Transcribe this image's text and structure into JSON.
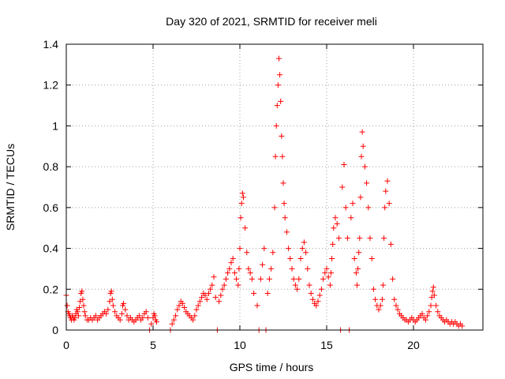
{
  "chart_data": {
    "type": "scatter",
    "title": "Day 320 of 2021, SRMTID for receiver meli",
    "xlabel": "GPS time / hours",
    "ylabel": "SRMTID / TECUs",
    "xlim": [
      0,
      24
    ],
    "ylim": [
      0,
      1.4
    ],
    "grid": true,
    "marker": "plus",
    "color": "#ff0000",
    "xticks": [
      0,
      5,
      10,
      15,
      20
    ],
    "xtick_labels": [
      "0",
      "5",
      "10",
      "15",
      "20"
    ],
    "yticks": [
      0,
      0.2,
      0.4,
      0.6,
      0.8,
      1.0,
      1.2,
      1.4
    ],
    "ytick_labels": [
      "0",
      "0.2",
      "0.4",
      "0.6",
      "0.8",
      "1",
      "1.2",
      "1.4"
    ],
    "series": [
      {
        "name": "meli",
        "x": [
          0.0,
          0.05,
          0.1,
          0.15,
          0.2,
          0.25,
          0.3,
          0.35,
          0.4,
          0.45,
          0.5,
          0.55,
          0.6,
          0.65,
          0.7,
          0.75,
          0.8,
          0.85,
          0.9,
          0.95,
          1.0,
          1.05,
          1.1,
          1.2,
          1.3,
          1.4,
          1.5,
          1.6,
          1.7,
          1.8,
          1.9,
          2.0,
          2.1,
          2.2,
          2.3,
          2.4,
          2.5,
          2.55,
          2.6,
          2.65,
          2.7,
          2.8,
          2.9,
          3.0,
          3.1,
          3.2,
          3.25,
          3.3,
          3.4,
          3.5,
          3.6,
          3.7,
          3.8,
          3.9,
          4.0,
          4.1,
          4.2,
          4.3,
          4.4,
          4.5,
          4.6,
          4.7,
          4.8,
          4.9,
          5.0,
          5.05,
          5.1,
          5.15,
          5.2,
          6.0,
          6.1,
          6.2,
          6.3,
          6.4,
          6.5,
          6.6,
          6.7,
          6.8,
          6.9,
          7.0,
          7.1,
          7.2,
          7.3,
          7.4,
          7.5,
          7.6,
          7.7,
          7.8,
          7.9,
          8.0,
          8.1,
          8.2,
          8.3,
          8.4,
          8.5,
          8.6,
          8.7,
          8.8,
          8.9,
          9.0,
          9.1,
          9.2,
          9.3,
          9.4,
          9.5,
          9.6,
          9.7,
          9.8,
          9.9,
          9.95,
          10.0,
          10.05,
          10.1,
          10.15,
          10.2,
          10.3,
          10.4,
          10.5,
          10.6,
          10.7,
          10.8,
          11.0,
          11.1,
          11.2,
          11.3,
          11.4,
          11.5,
          11.6,
          11.7,
          11.8,
          11.9,
          12.0,
          12.05,
          12.1,
          12.15,
          12.2,
          12.25,
          12.3,
          12.35,
          12.4,
          12.45,
          12.5,
          12.55,
          12.6,
          12.7,
          12.8,
          12.9,
          13.0,
          13.1,
          13.2,
          13.3,
          13.4,
          13.5,
          13.6,
          13.7,
          13.8,
          13.9,
          14.0,
          14.1,
          14.2,
          14.3,
          14.4,
          14.5,
          14.6,
          14.7,
          14.8,
          14.9,
          15.0,
          15.1,
          15.2,
          15.25,
          15.3,
          15.35,
          15.4,
          15.5,
          15.6,
          15.7,
          15.8,
          15.9,
          16.0,
          16.1,
          16.2,
          16.3,
          16.4,
          16.5,
          16.6,
          16.7,
          16.75,
          16.8,
          16.85,
          16.9,
          16.95,
          17.0,
          17.05,
          17.1,
          17.2,
          17.3,
          17.4,
          17.5,
          17.6,
          17.7,
          17.8,
          17.9,
          18.0,
          18.1,
          18.2,
          18.25,
          18.3,
          18.35,
          18.4,
          18.5,
          18.6,
          18.7,
          18.8,
          18.9,
          19.0,
          19.1,
          19.2,
          19.3,
          19.4,
          19.5,
          19.6,
          19.7,
          19.8,
          19.9,
          20.0,
          20.1,
          20.2,
          20.3,
          20.4,
          20.5,
          20.6,
          20.7,
          20.8,
          20.9,
          21.0,
          21.05,
          21.1,
          21.15,
          21.2,
          21.3,
          21.4,
          21.5,
          21.6,
          21.7,
          21.8,
          21.9,
          22.0,
          22.1,
          22.2,
          22.3,
          22.4,
          22.5,
          22.6,
          22.7,
          22.8
        ],
        "y": [
          0.17,
          0.12,
          0.09,
          0.08,
          0.07,
          0.06,
          0.05,
          0.07,
          0.06,
          0.05,
          0.06,
          0.08,
          0.1,
          0.09,
          0.07,
          0.11,
          0.14,
          0.18,
          0.19,
          0.15,
          0.12,
          0.09,
          0.07,
          0.05,
          0.05,
          0.06,
          0.05,
          0.06,
          0.07,
          0.05,
          0.06,
          0.07,
          0.08,
          0.09,
          0.08,
          0.1,
          0.14,
          0.18,
          0.19,
          0.15,
          0.12,
          0.09,
          0.07,
          0.06,
          0.05,
          0.08,
          0.12,
          0.13,
          0.1,
          0.07,
          0.05,
          0.06,
          0.05,
          0.04,
          0.05,
          0.06,
          0.07,
          0.05,
          0.06,
          0.08,
          0.09,
          0.06,
          0.0,
          0.03,
          0.06,
          0.08,
          0.07,
          0.05,
          0.04,
          0.0,
          0.03,
          0.05,
          0.07,
          0.1,
          0.12,
          0.14,
          0.13,
          0.11,
          0.09,
          0.08,
          0.07,
          0.06,
          0.05,
          0.07,
          0.1,
          0.12,
          0.14,
          0.16,
          0.18,
          0.17,
          0.15,
          0.18,
          0.2,
          0.22,
          0.26,
          0.16,
          0.0,
          0.14,
          0.17,
          0.2,
          0.22,
          0.25,
          0.28,
          0.3,
          0.33,
          0.35,
          0.28,
          0.25,
          0.22,
          0.3,
          0.4,
          0.55,
          0.62,
          0.67,
          0.65,
          0.5,
          0.38,
          0.3,
          0.28,
          0.25,
          0.18,
          0.12,
          0.0,
          0.25,
          0.32,
          0.4,
          0.0,
          0.18,
          0.25,
          0.3,
          0.38,
          0.6,
          0.85,
          1.0,
          1.1,
          1.2,
          1.33,
          1.25,
          1.12,
          0.95,
          0.85,
          0.72,
          0.62,
          0.55,
          0.48,
          0.4,
          0.35,
          0.3,
          0.25,
          0.22,
          0.2,
          0.25,
          0.35,
          0.4,
          0.43,
          0.38,
          0.3,
          0.22,
          0.18,
          0.15,
          0.13,
          0.12,
          0.14,
          0.17,
          0.2,
          0.25,
          0.28,
          0.3,
          0.26,
          0.22,
          0.28,
          0.35,
          0.42,
          0.5,
          0.55,
          0.52,
          0.45,
          0.0,
          0.7,
          0.81,
          0.6,
          0.45,
          0.0,
          0.55,
          0.62,
          0.35,
          0.28,
          0.22,
          0.3,
          0.38,
          0.45,
          0.65,
          0.85,
          0.97,
          0.9,
          0.8,
          0.72,
          0.6,
          0.45,
          0.35,
          0.2,
          0.15,
          0.12,
          0.1,
          0.12,
          0.15,
          0.22,
          0.45,
          0.6,
          0.68,
          0.73,
          0.62,
          0.42,
          0.25,
          0.15,
          0.12,
          0.1,
          0.08,
          0.07,
          0.06,
          0.05,
          0.05,
          0.04,
          0.05,
          0.06,
          0.05,
          0.04,
          0.05,
          0.06,
          0.07,
          0.08,
          0.06,
          0.05,
          0.07,
          0.09,
          0.12,
          0.16,
          0.19,
          0.21,
          0.17,
          0.12,
          0.09,
          0.07,
          0.06,
          0.05,
          0.04,
          0.05,
          0.04,
          0.03,
          0.04,
          0.03,
          0.04,
          0.03,
          0.02,
          0.03,
          0.02
        ]
      }
    ]
  }
}
